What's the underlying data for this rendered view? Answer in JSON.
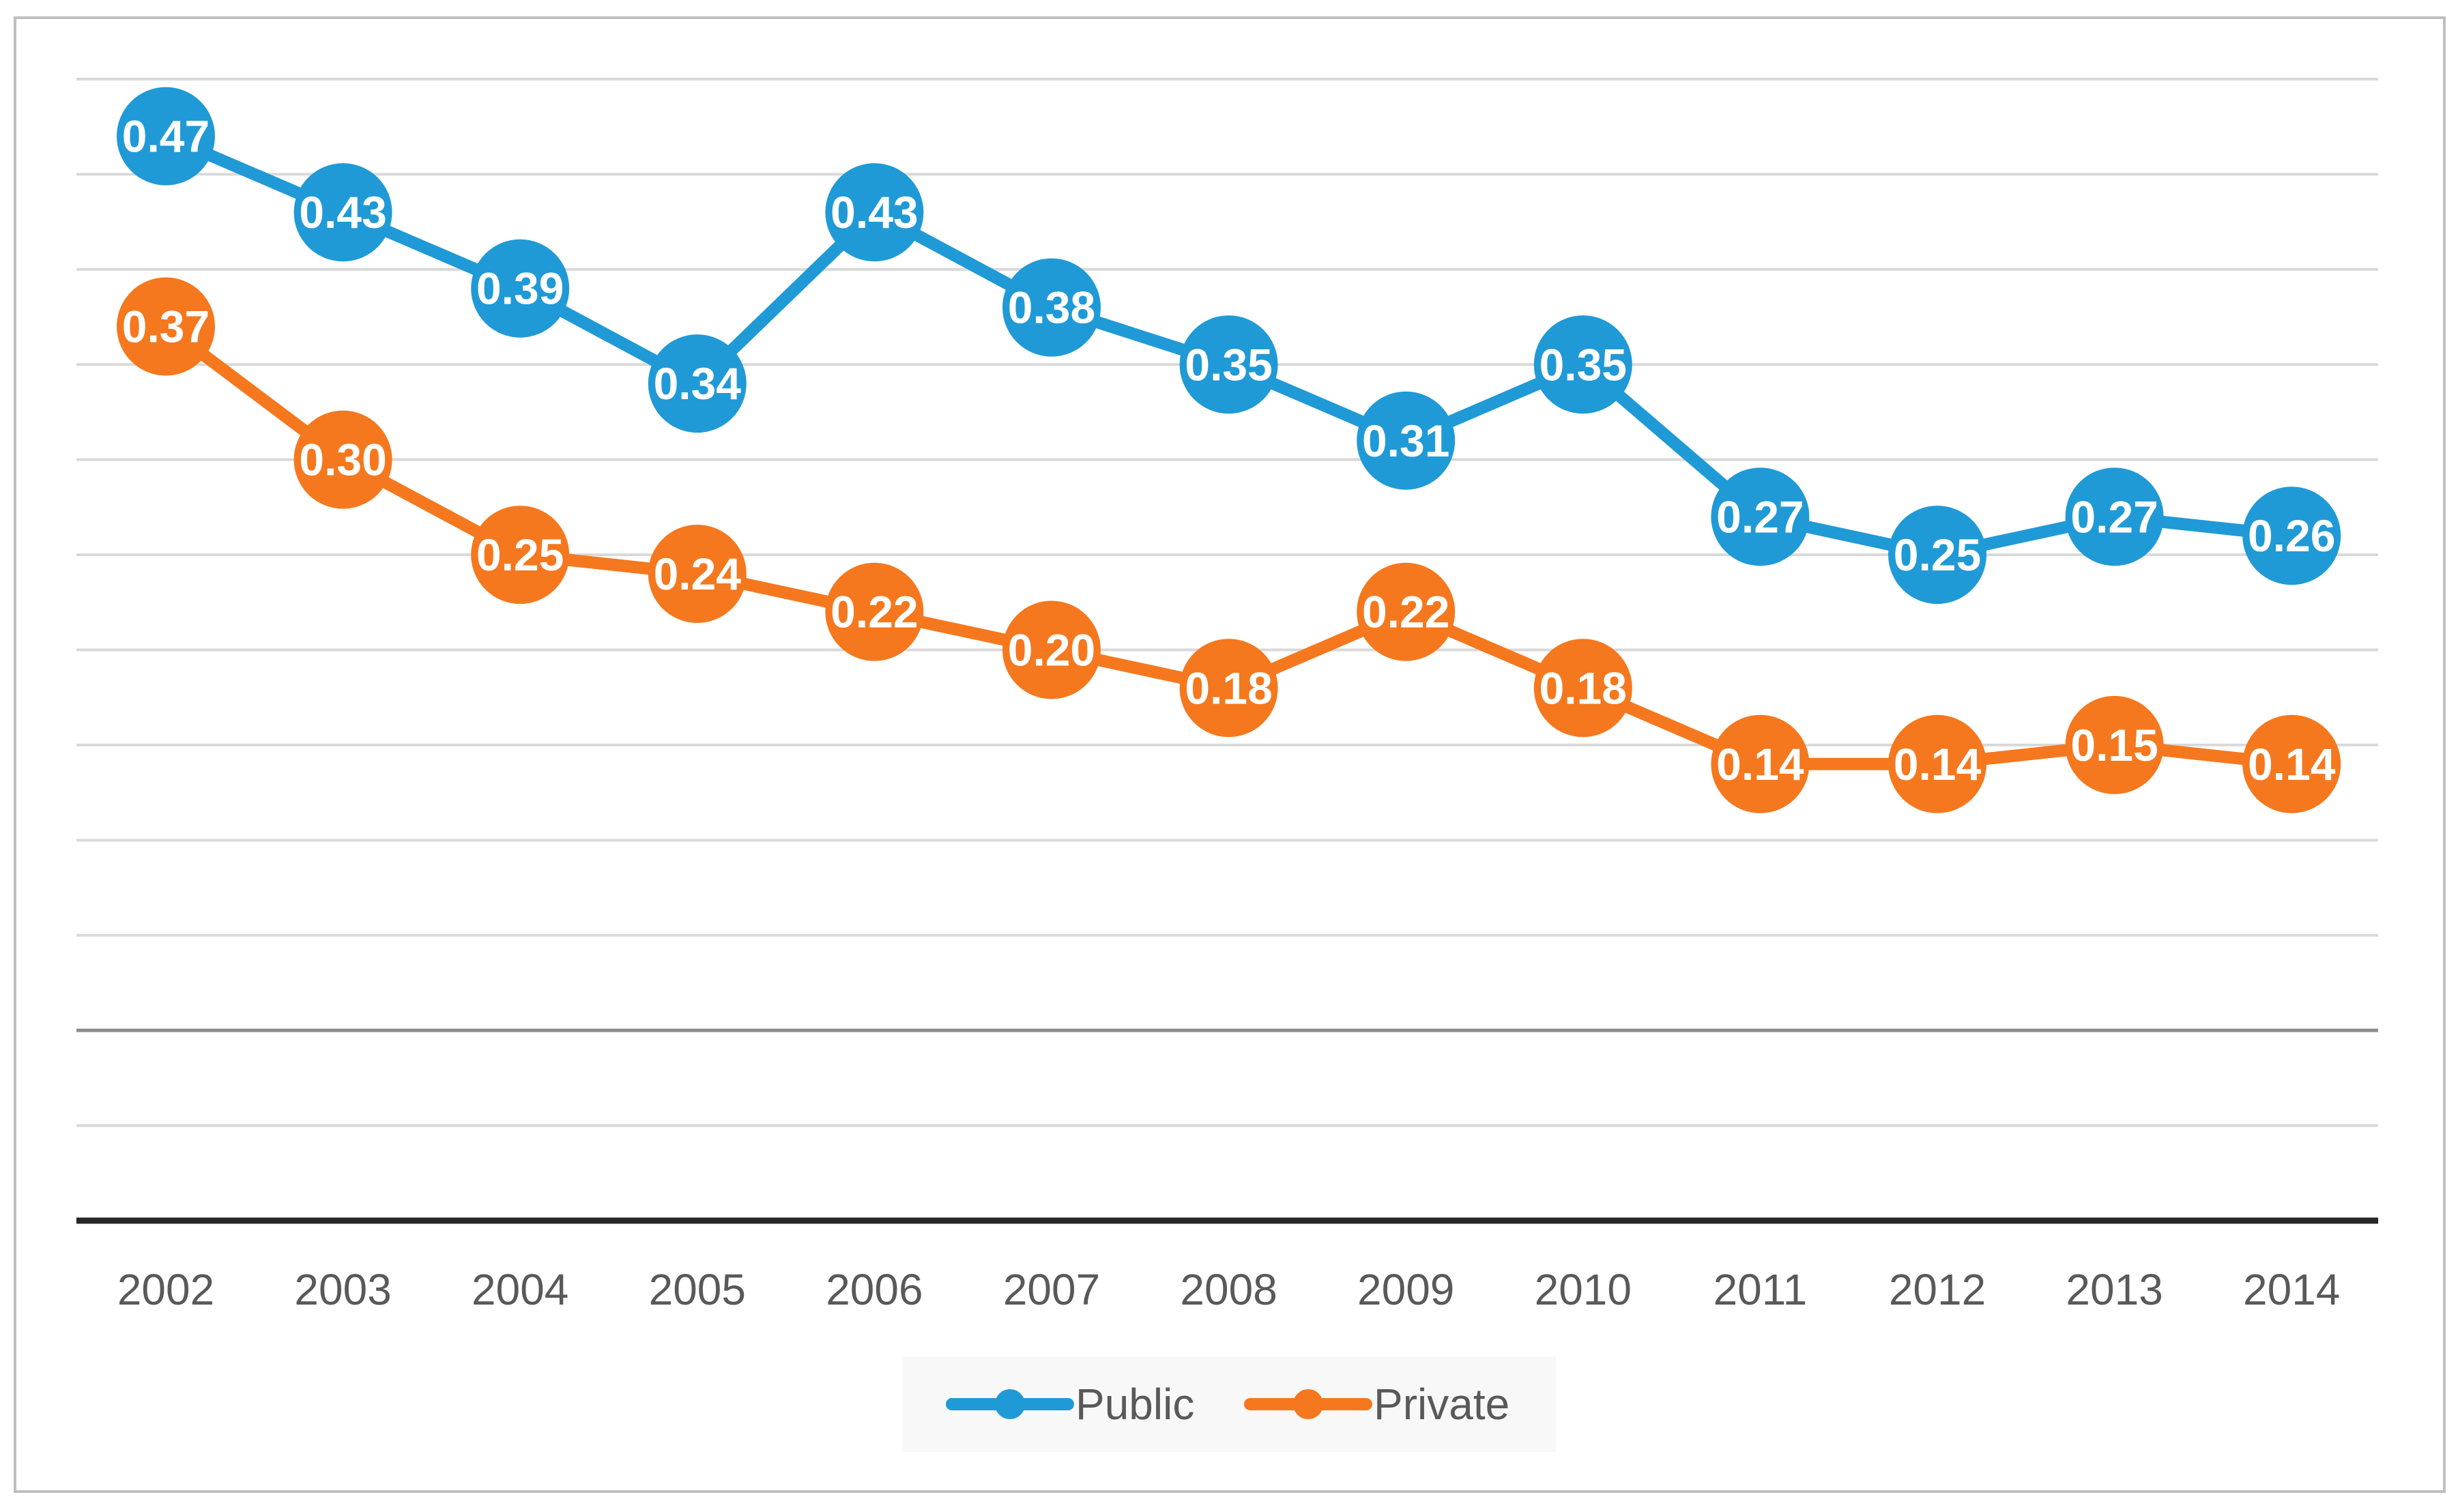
{
  "chart_data": {
    "type": "line",
    "title": "",
    "xlabel": "",
    "ylabel": "",
    "grid": true,
    "legend_position": "bottom-center",
    "categories": [
      "2002",
      "2003",
      "2004",
      "2005",
      "2006",
      "2007",
      "2008",
      "2009",
      "2010",
      "2011",
      "2012",
      "2013",
      "2014"
    ],
    "ylim": [
      -0.1,
      0.5
    ],
    "y_gridlines": [
      -0.1,
      -0.05,
      0.0,
      0.05,
      0.1,
      0.15,
      0.2,
      0.25,
      0.3,
      0.35,
      0.4,
      0.45,
      0.5
    ],
    "series": [
      {
        "name": "Public",
        "color": "#1f9ad6",
        "values": [
          0.47,
          0.43,
          0.39,
          0.34,
          0.43,
          0.38,
          0.35,
          0.31,
          0.35,
          0.27,
          0.25,
          0.27,
          0.26
        ],
        "labels": [
          "0.47",
          "0.43",
          "0.39",
          "0.34",
          "0.43",
          "0.38",
          "0.35",
          "0.31",
          "0.35",
          "0.27",
          "0.25",
          "0.27",
          "0.26"
        ]
      },
      {
        "name": "Private",
        "color": "#f5781e",
        "values": [
          0.37,
          0.3,
          0.25,
          0.24,
          0.22,
          0.2,
          0.18,
          0.22,
          0.18,
          0.14,
          0.14,
          0.15,
          0.14
        ],
        "labels": [
          "0.37",
          "0.30",
          "0.25",
          "0.24",
          "0.22",
          "0.20",
          "0.18",
          "0.22",
          "0.18",
          "0.14",
          "0.14",
          "0.15",
          "0.14"
        ]
      }
    ]
  }
}
